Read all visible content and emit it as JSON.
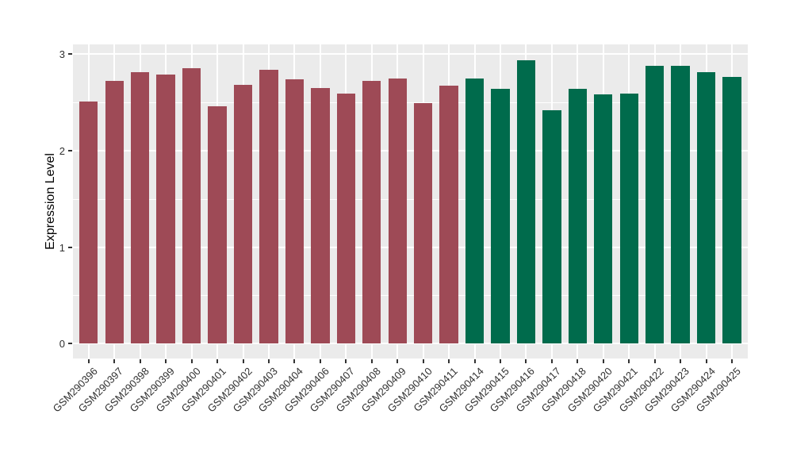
{
  "chart_data": {
    "type": "bar",
    "title": "",
    "xlabel": "",
    "ylabel": "Expression Level",
    "ylim": [
      0,
      3.1
    ],
    "yticks": [
      0,
      1,
      2,
      3
    ],
    "yticks_minor": [
      0.5,
      1.5,
      2.5
    ],
    "grid": "on",
    "legend": "none",
    "panel_background": "#EBEBEB",
    "gridline_color": "#ffffff",
    "group_colors": {
      "group1": "#9E4A56",
      "group2": "#006B4C"
    },
    "bars": [
      {
        "label": "GSM290396",
        "value": 2.51,
        "group": "group1"
      },
      {
        "label": "GSM290397",
        "value": 2.72,
        "group": "group1"
      },
      {
        "label": "GSM290398",
        "value": 2.81,
        "group": "group1"
      },
      {
        "label": "GSM290399",
        "value": 2.79,
        "group": "group1"
      },
      {
        "label": "GSM290400",
        "value": 2.85,
        "group": "group1"
      },
      {
        "label": "GSM290401",
        "value": 2.46,
        "group": "group1"
      },
      {
        "label": "GSM290402",
        "value": 2.68,
        "group": "group1"
      },
      {
        "label": "GSM290403",
        "value": 2.84,
        "group": "group1"
      },
      {
        "label": "GSM290404",
        "value": 2.74,
        "group": "group1"
      },
      {
        "label": "GSM290406",
        "value": 2.65,
        "group": "group1"
      },
      {
        "label": "GSM290407",
        "value": 2.59,
        "group": "group1"
      },
      {
        "label": "GSM290408",
        "value": 2.72,
        "group": "group1"
      },
      {
        "label": "GSM290409",
        "value": 2.75,
        "group": "group1"
      },
      {
        "label": "GSM290410",
        "value": 2.49,
        "group": "group1"
      },
      {
        "label": "GSM290411",
        "value": 2.67,
        "group": "group1"
      },
      {
        "label": "GSM290414",
        "value": 2.75,
        "group": "group2"
      },
      {
        "label": "GSM290415",
        "value": 2.64,
        "group": "group2"
      },
      {
        "label": "GSM290416",
        "value": 2.94,
        "group": "group2"
      },
      {
        "label": "GSM290417",
        "value": 2.42,
        "group": "group2"
      },
      {
        "label": "GSM290418",
        "value": 2.64,
        "group": "group2"
      },
      {
        "label": "GSM290420",
        "value": 2.58,
        "group": "group2"
      },
      {
        "label": "GSM290421",
        "value": 2.59,
        "group": "group2"
      },
      {
        "label": "GSM290422",
        "value": 2.88,
        "group": "group2"
      },
      {
        "label": "GSM290423",
        "value": 2.88,
        "group": "group2"
      },
      {
        "label": "GSM290424",
        "value": 2.81,
        "group": "group2"
      },
      {
        "label": "GSM290425",
        "value": 2.76,
        "group": "group2"
      }
    ]
  }
}
